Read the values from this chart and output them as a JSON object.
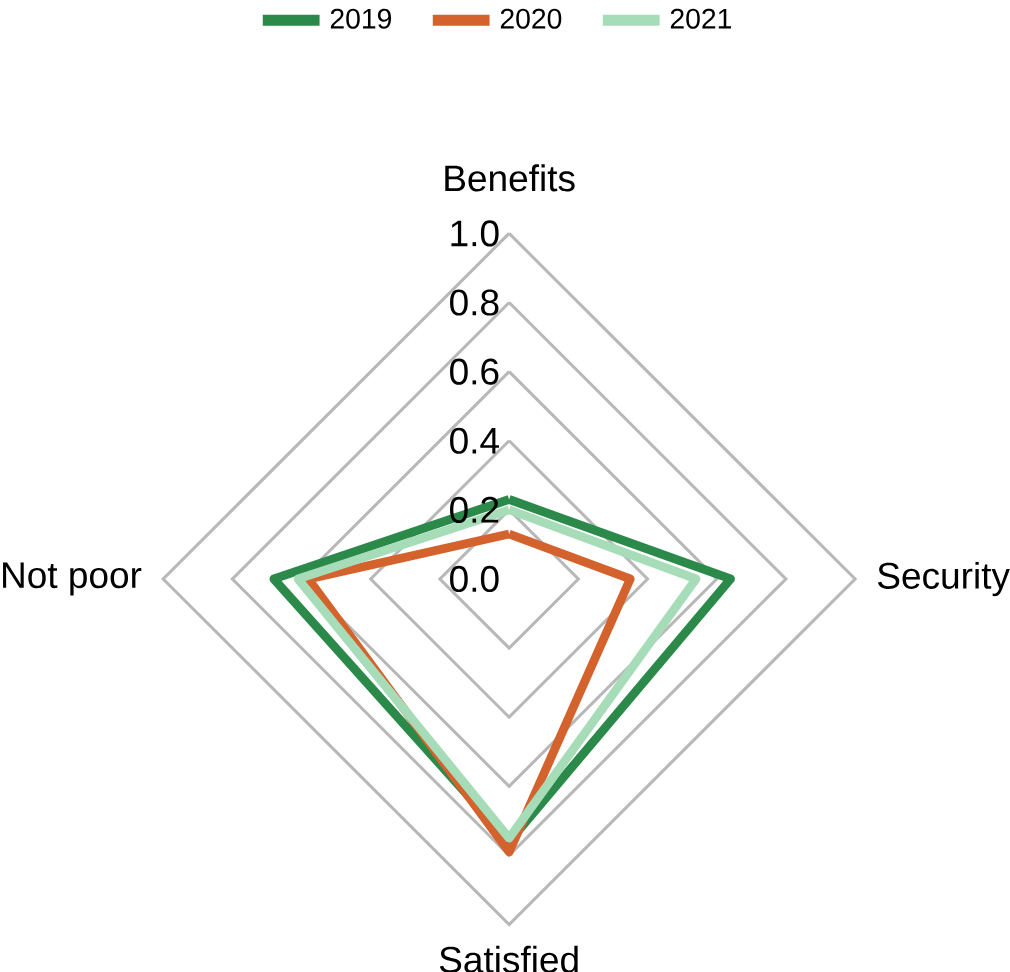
{
  "chart_data": {
    "type": "radar",
    "categories": [
      "Benefits",
      "Security",
      "Satisfied",
      "Not poor"
    ],
    "series": [
      {
        "name": "2019",
        "color": "#2b8a4a",
        "values": [
          0.23,
          0.64,
          0.76,
          0.68
        ]
      },
      {
        "name": "2020",
        "color": "#d4622c",
        "values": [
          0.13,
          0.35,
          0.79,
          0.58
        ]
      },
      {
        "name": "2021",
        "color": "#a6dcb8",
        "values": [
          0.2,
          0.54,
          0.75,
          0.61
        ]
      }
    ],
    "ylim": [
      0,
      1
    ],
    "yticks": [
      {
        "value": 0,
        "label": "0.0"
      },
      0.2,
      0.4,
      0.6,
      0.8,
      {
        "value": 1,
        "label": "1.0"
      }
    ],
    "grid": true,
    "legend": "top",
    "marker": "none"
  }
}
